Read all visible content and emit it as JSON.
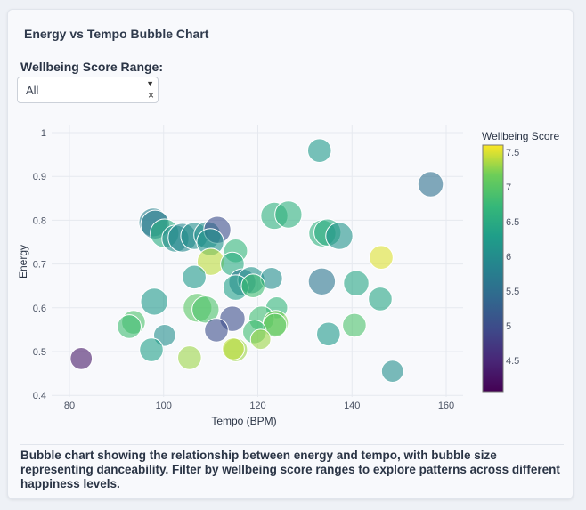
{
  "header": {
    "title": "Energy vs Tempo Bubble Chart"
  },
  "filter": {
    "label": "Wellbeing Score Range:",
    "value": "All",
    "caret_icon": "caret-down-icon",
    "clear_icon": "clear-x-icon"
  },
  "caption": "Bubble chart showing the relationship between energy and tempo, with bubble size representing danceability. Filter by wellbeing score ranges to explore patterns across different happiness levels.",
  "chart_data": {
    "type": "scatter",
    "title": "",
    "xlabel": "Tempo (BPM)",
    "ylabel": "Energy",
    "xlim": [
      75,
      165
    ],
    "ylim": [
      0.4,
      1.0
    ],
    "xticks": [
      80,
      100,
      120,
      140,
      160
    ],
    "yticks": [
      0.4,
      0.5,
      0.6,
      0.7,
      0.8,
      0.9,
      1
    ],
    "grid": true,
    "colorbar": {
      "title": "Wellbeing Score",
      "range": [
        4.05,
        7.6
      ],
      "ticks": [
        4.5,
        5,
        5.5,
        6,
        6.5,
        7,
        7.5
      ],
      "colorscale": "viridis"
    },
    "size_encoding": "danceability",
    "points": [
      {
        "x": 133.1,
        "y": 0.959,
        "c": 6.2,
        "s": 0.7
      },
      {
        "x": 156.7,
        "y": 0.882,
        "c": 5.5,
        "s": 0.75
      },
      {
        "x": 97.8,
        "y": 0.795,
        "c": 5.8,
        "s": 0.85
      },
      {
        "x": 98.2,
        "y": 0.79,
        "c": 5.7,
        "s": 0.85
      },
      {
        "x": 100.2,
        "y": 0.77,
        "c": 6.5,
        "s": 0.85
      },
      {
        "x": 102.5,
        "y": 0.758,
        "c": 6.0,
        "s": 0.8
      },
      {
        "x": 104,
        "y": 0.76,
        "c": 5.9,
        "s": 0.85
      },
      {
        "x": 106.5,
        "y": 0.764,
        "c": 6.0,
        "s": 0.8
      },
      {
        "x": 109.3,
        "y": 0.766,
        "c": 6.0,
        "s": 0.8
      },
      {
        "x": 111.4,
        "y": 0.778,
        "c": 5.0,
        "s": 0.8
      },
      {
        "x": 109.9,
        "y": 0.75,
        "c": 6.1,
        "s": 0.8
      },
      {
        "x": 123.5,
        "y": 0.81,
        "c": 6.6,
        "s": 0.8
      },
      {
        "x": 126.5,
        "y": 0.813,
        "c": 6.6,
        "s": 0.8
      },
      {
        "x": 133.7,
        "y": 0.77,
        "c": 6.6,
        "s": 0.8
      },
      {
        "x": 134.8,
        "y": 0.772,
        "c": 6.5,
        "s": 0.8
      },
      {
        "x": 137.3,
        "y": 0.764,
        "c": 6.1,
        "s": 0.8
      },
      {
        "x": 146.2,
        "y": 0.715,
        "c": 7.5,
        "s": 0.7
      },
      {
        "x": 110,
        "y": 0.705,
        "c": 7.4,
        "s": 0.8
      },
      {
        "x": 115.3,
        "y": 0.73,
        "c": 6.7,
        "s": 0.7
      },
      {
        "x": 114.6,
        "y": 0.7,
        "c": 6.5,
        "s": 0.7
      },
      {
        "x": 106.5,
        "y": 0.67,
        "c": 6.2,
        "s": 0.7
      },
      {
        "x": 116.7,
        "y": 0.658,
        "c": 5.6,
        "s": 0.8
      },
      {
        "x": 118.6,
        "y": 0.663,
        "c": 6.1,
        "s": 0.8
      },
      {
        "x": 122.9,
        "y": 0.667,
        "c": 6.0,
        "s": 0.65
      },
      {
        "x": 115.3,
        "y": 0.646,
        "c": 6.3,
        "s": 0.75
      },
      {
        "x": 119,
        "y": 0.65,
        "c": 6.8,
        "s": 0.7
      },
      {
        "x": 133.6,
        "y": 0.66,
        "c": 5.6,
        "s": 0.8
      },
      {
        "x": 140.9,
        "y": 0.656,
        "c": 6.4,
        "s": 0.75
      },
      {
        "x": 146,
        "y": 0.62,
        "c": 6.4,
        "s": 0.7
      },
      {
        "x": 98,
        "y": 0.614,
        "c": 6.2,
        "s": 0.8
      },
      {
        "x": 107.2,
        "y": 0.6,
        "c": 7.0,
        "s": 0.85
      },
      {
        "x": 108.9,
        "y": 0.596,
        "c": 6.9,
        "s": 0.8
      },
      {
        "x": 124,
        "y": 0.6,
        "c": 6.7,
        "s": 0.65
      },
      {
        "x": 114.6,
        "y": 0.575,
        "c": 5.0,
        "s": 0.75
      },
      {
        "x": 111.2,
        "y": 0.549,
        "c": 5.0,
        "s": 0.7
      },
      {
        "x": 93.6,
        "y": 0.567,
        "c": 6.9,
        "s": 0.7
      },
      {
        "x": 92.7,
        "y": 0.557,
        "c": 6.8,
        "s": 0.7
      },
      {
        "x": 100.2,
        "y": 0.537,
        "c": 6.0,
        "s": 0.65
      },
      {
        "x": 97.4,
        "y": 0.504,
        "c": 6.3,
        "s": 0.7
      },
      {
        "x": 105.5,
        "y": 0.486,
        "c": 7.3,
        "s": 0.7
      },
      {
        "x": 120.8,
        "y": 0.575,
        "c": 6.8,
        "s": 0.75
      },
      {
        "x": 123.8,
        "y": 0.565,
        "c": 7.2,
        "s": 0.75
      },
      {
        "x": 123.6,
        "y": 0.56,
        "c": 7.0,
        "s": 0.7
      },
      {
        "x": 119.3,
        "y": 0.545,
        "c": 6.8,
        "s": 0.7
      },
      {
        "x": 120.6,
        "y": 0.528,
        "c": 7.3,
        "s": 0.6
      },
      {
        "x": 115.3,
        "y": 0.504,
        "c": 7.3,
        "s": 0.7
      },
      {
        "x": 114.8,
        "y": 0.506,
        "c": 7.4,
        "s": 0.65
      },
      {
        "x": 135,
        "y": 0.54,
        "c": 6.2,
        "s": 0.7
      },
      {
        "x": 140.5,
        "y": 0.56,
        "c": 6.9,
        "s": 0.7
      },
      {
        "x": 82.5,
        "y": 0.484,
        "c": 4.3,
        "s": 0.65
      },
      {
        "x": 148.6,
        "y": 0.455,
        "c": 6.0,
        "s": 0.65
      }
    ]
  }
}
